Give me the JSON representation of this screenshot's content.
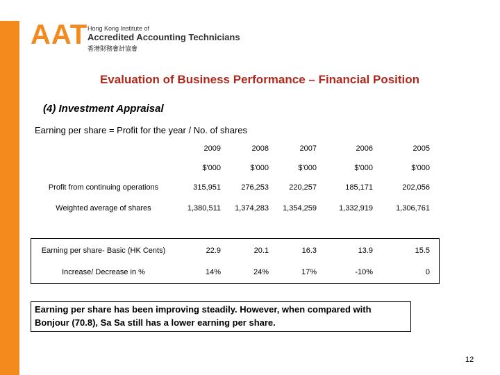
{
  "header": {
    "logo": "AAT",
    "org_lines": [
      "Hong Kong Institute of",
      "Accredited Accounting Technicians",
      "香港財務會計協會"
    ]
  },
  "title": "Evaluation of Business Performance – Financial Position",
  "subtitle": "(4) Investment Appraisal",
  "formula": "Earning per share = Profit for the year / No. of shares",
  "table": {
    "columns": [
      "2009",
      "2008",
      "2007",
      "2006",
      "2005"
    ],
    "units": [
      "$'000",
      "$'000",
      "$'000",
      "$'000",
      "$'000"
    ],
    "rows": [
      {
        "label": "Profit from continuing operations",
        "cells": [
          "315,951",
          "276,253",
          "220,257",
          "185,171",
          "202,056"
        ]
      },
      {
        "label": "Weighted average of shares",
        "cells": [
          "1,380,511",
          "1,374,283",
          "1,354,259",
          "1,332,919",
          "1,306,761"
        ]
      }
    ]
  },
  "summary": {
    "rows": [
      {
        "label": "Earning per share- Basic (HK Cents)",
        "cells": [
          "22.9",
          "20.1",
          "16.3",
          "13.9",
          "15.5"
        ]
      },
      {
        "label": "Increase/ Decrease in %",
        "cells": [
          "14%",
          "24%",
          "17%",
          "-10%",
          "0"
        ]
      }
    ]
  },
  "note": [
    "Earning per share has been improving steadily.  However, when compared with",
    "Bonjour (70.8), Sa Sa still has a lower earning per share."
  ],
  "page_number": "12"
}
